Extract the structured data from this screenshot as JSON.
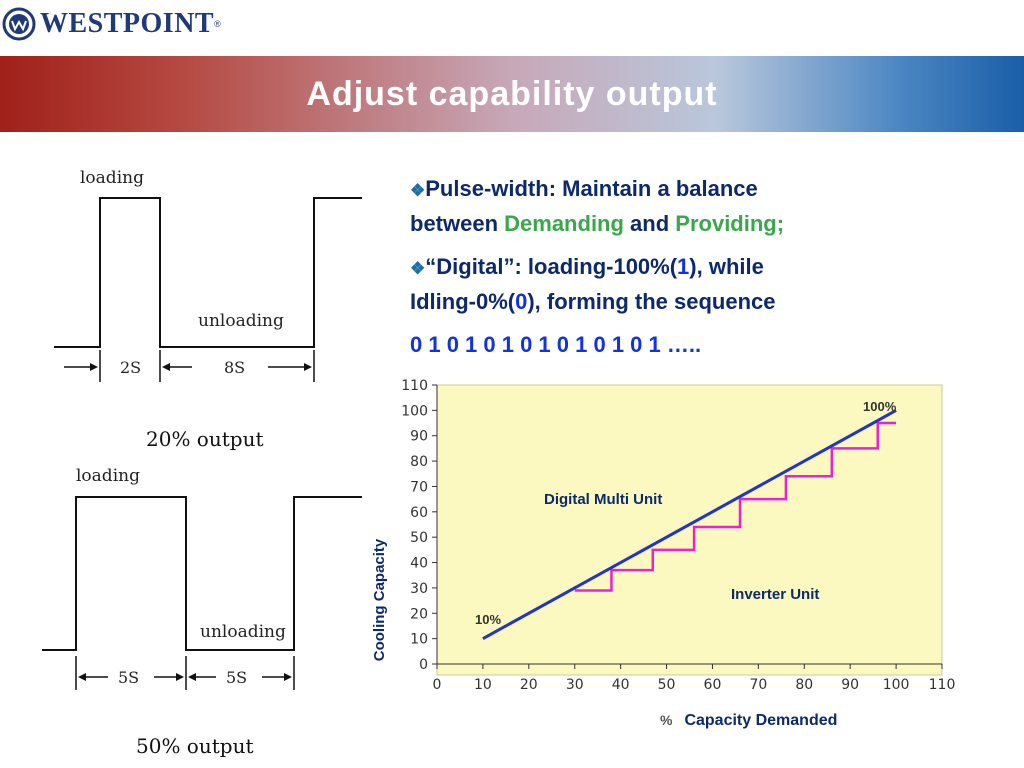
{
  "logo": {
    "brand": "WESTPOINT",
    "reg": "®",
    "brand_color": "#1f3a78"
  },
  "title": "Adjust capability output",
  "waveforms": [
    {
      "loading_label": "loading",
      "unloading_label": "unloading",
      "on_label": "2S",
      "off_label": "8S",
      "output_label": "20% output"
    },
    {
      "loading_label": "loading",
      "unloading_label": "unloading",
      "on_label": "5S",
      "off_label": "5S",
      "output_label": "50% output"
    }
  ],
  "bullets": [
    {
      "marker": "❖",
      "line1": "Pulse-width: Maintain a balance",
      "line2_prefix": "between ",
      "demanding": "Demanding",
      "and": " and ",
      "providing": "Providing;"
    },
    {
      "marker": "❖",
      "line1_prefix": "“Digital”: loading-100%(",
      "one": "1",
      "line1_suffix": "), while",
      "line2_prefix": "Idling-0%(",
      "zero": "0",
      "line2_suffix": "), forming the sequence"
    }
  ],
  "sequence": "0 1 0 1 0 1 0 1 0 1 0 1 0 1 …..",
  "colors": {
    "title_text": "#ffffff",
    "bullet_text": "#0c2a6a",
    "green": "#3aa84a",
    "blue": "#1133dd",
    "chart_bg": "#fbf8c0",
    "inverter_line": "#2233cc",
    "digital_line": "#ee22cc"
  },
  "chart_data": {
    "type": "line",
    "ylabel": "Cooling Capacity",
    "xlabel_prefix": "%",
    "xlabel": "Capacity Demanded",
    "xlim": [
      0,
      110
    ],
    "ylim": [
      0,
      110
    ],
    "x_ticks": [
      0,
      10,
      20,
      30,
      40,
      50,
      60,
      70,
      80,
      90,
      100,
      110
    ],
    "y_ticks": [
      0,
      10,
      20,
      30,
      40,
      50,
      60,
      70,
      80,
      90,
      100,
      110
    ],
    "annotations": [
      "10%",
      "100%",
      "Digital Multi Unit",
      "Inverter Unit"
    ],
    "series": [
      {
        "name": "Inverter Unit",
        "x": [
          10,
          100
        ],
        "y": [
          10,
          100
        ]
      },
      {
        "name": "Digital Multi Unit",
        "x": [
          30,
          38,
          38,
          47,
          47,
          56,
          56,
          66,
          66,
          76,
          76,
          86,
          86,
          96,
          96,
          100
        ],
        "y": [
          29,
          29,
          37,
          37,
          45,
          45,
          54,
          54,
          65,
          65,
          74,
          74,
          85,
          85,
          95,
          95
        ]
      }
    ]
  }
}
